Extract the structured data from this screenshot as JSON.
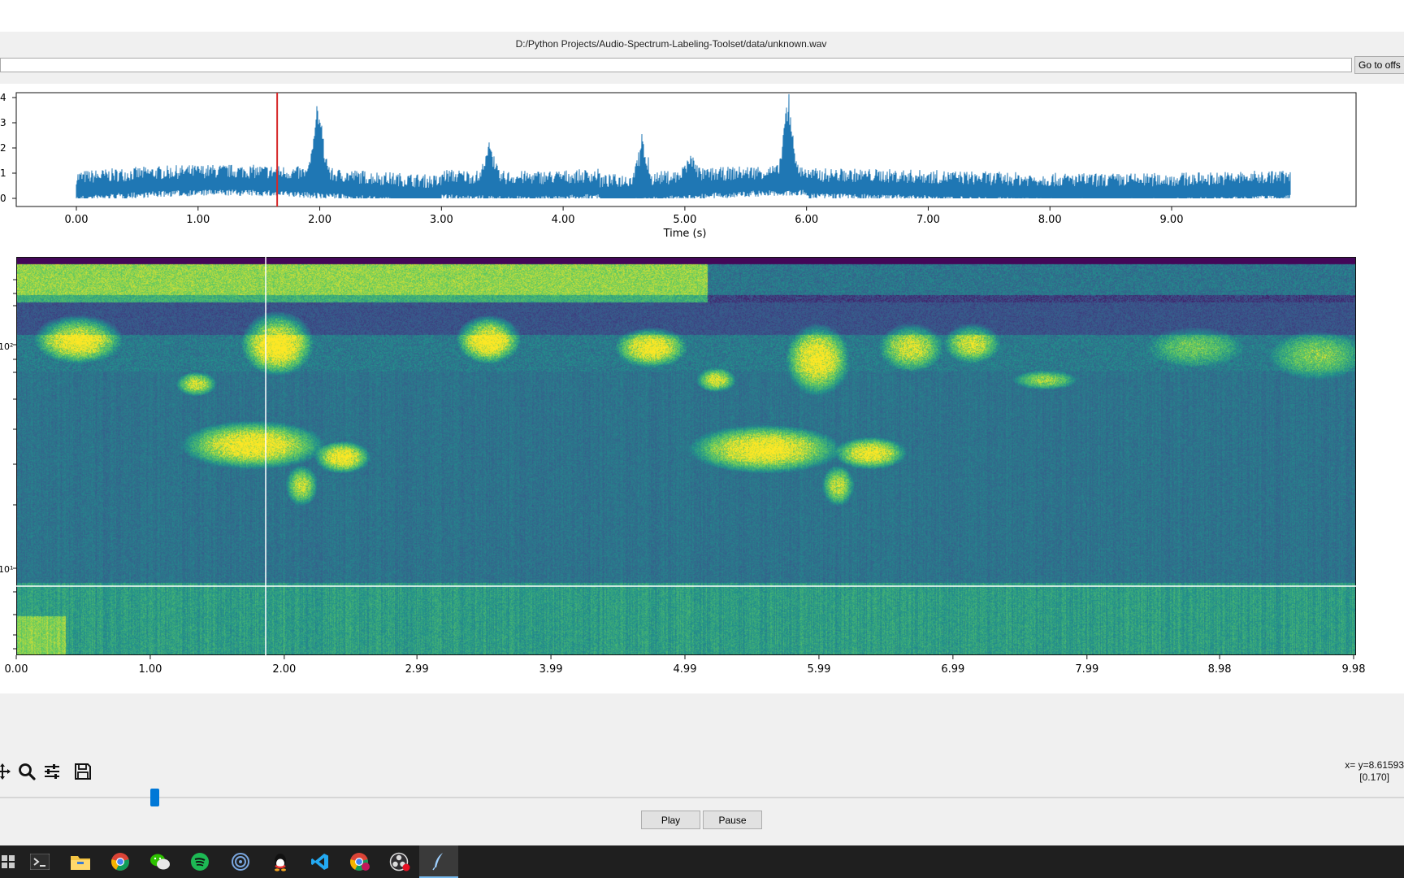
{
  "window": {
    "file_path": "D:/Python Projects/Audio-Spectrum-Labeling-Toolset/data/unknown.wav",
    "offset_input_value": "",
    "goto_label": "Go to offs"
  },
  "waveform": {
    "y_ticks": [
      "0",
      "1",
      "2",
      "3",
      "4"
    ],
    "x_ticks": [
      "0.00",
      "1.00",
      "2.00",
      "3.00",
      "4.00",
      "5.00",
      "6.00",
      "7.00",
      "8.00",
      "9.00"
    ],
    "xlabel": "Time (s)",
    "cursor_time": 1.65,
    "line_color": "#1f77b4",
    "cursor_color": "#d62728"
  },
  "spectrogram": {
    "x_ticks": [
      "0.00",
      "1.00",
      "2.00",
      "2.99",
      "3.99",
      "4.99",
      "5.99",
      "6.99",
      "7.99",
      "8.98",
      "9.98"
    ],
    "y_tick_labels": [
      "10²",
      "10¹"
    ],
    "crosshair_color": "#ffffff",
    "colormap": [
      "#440154",
      "#3b528b",
      "#21918c",
      "#5ec962",
      "#fde725"
    ]
  },
  "toolbar": {
    "tools": [
      "pan-icon",
      "zoom-icon",
      "configure-subplots-icon",
      "save-icon"
    ]
  },
  "readout": {
    "line1": "x= y=8.61593",
    "line2": "[0.170]"
  },
  "playback": {
    "play_label": "Play",
    "pause_label": "Pause",
    "position_fraction": 0.11
  },
  "taskbar": {
    "apps": [
      "start-icon",
      "terminal-icon",
      "file-explorer-icon",
      "chrome-icon",
      "wechat-icon",
      "spotify-icon",
      "podcast-icon",
      "qq-icon",
      "vscode-icon",
      "chrome-profile-icon",
      "obs-icon",
      "feather-app-icon"
    ]
  }
}
